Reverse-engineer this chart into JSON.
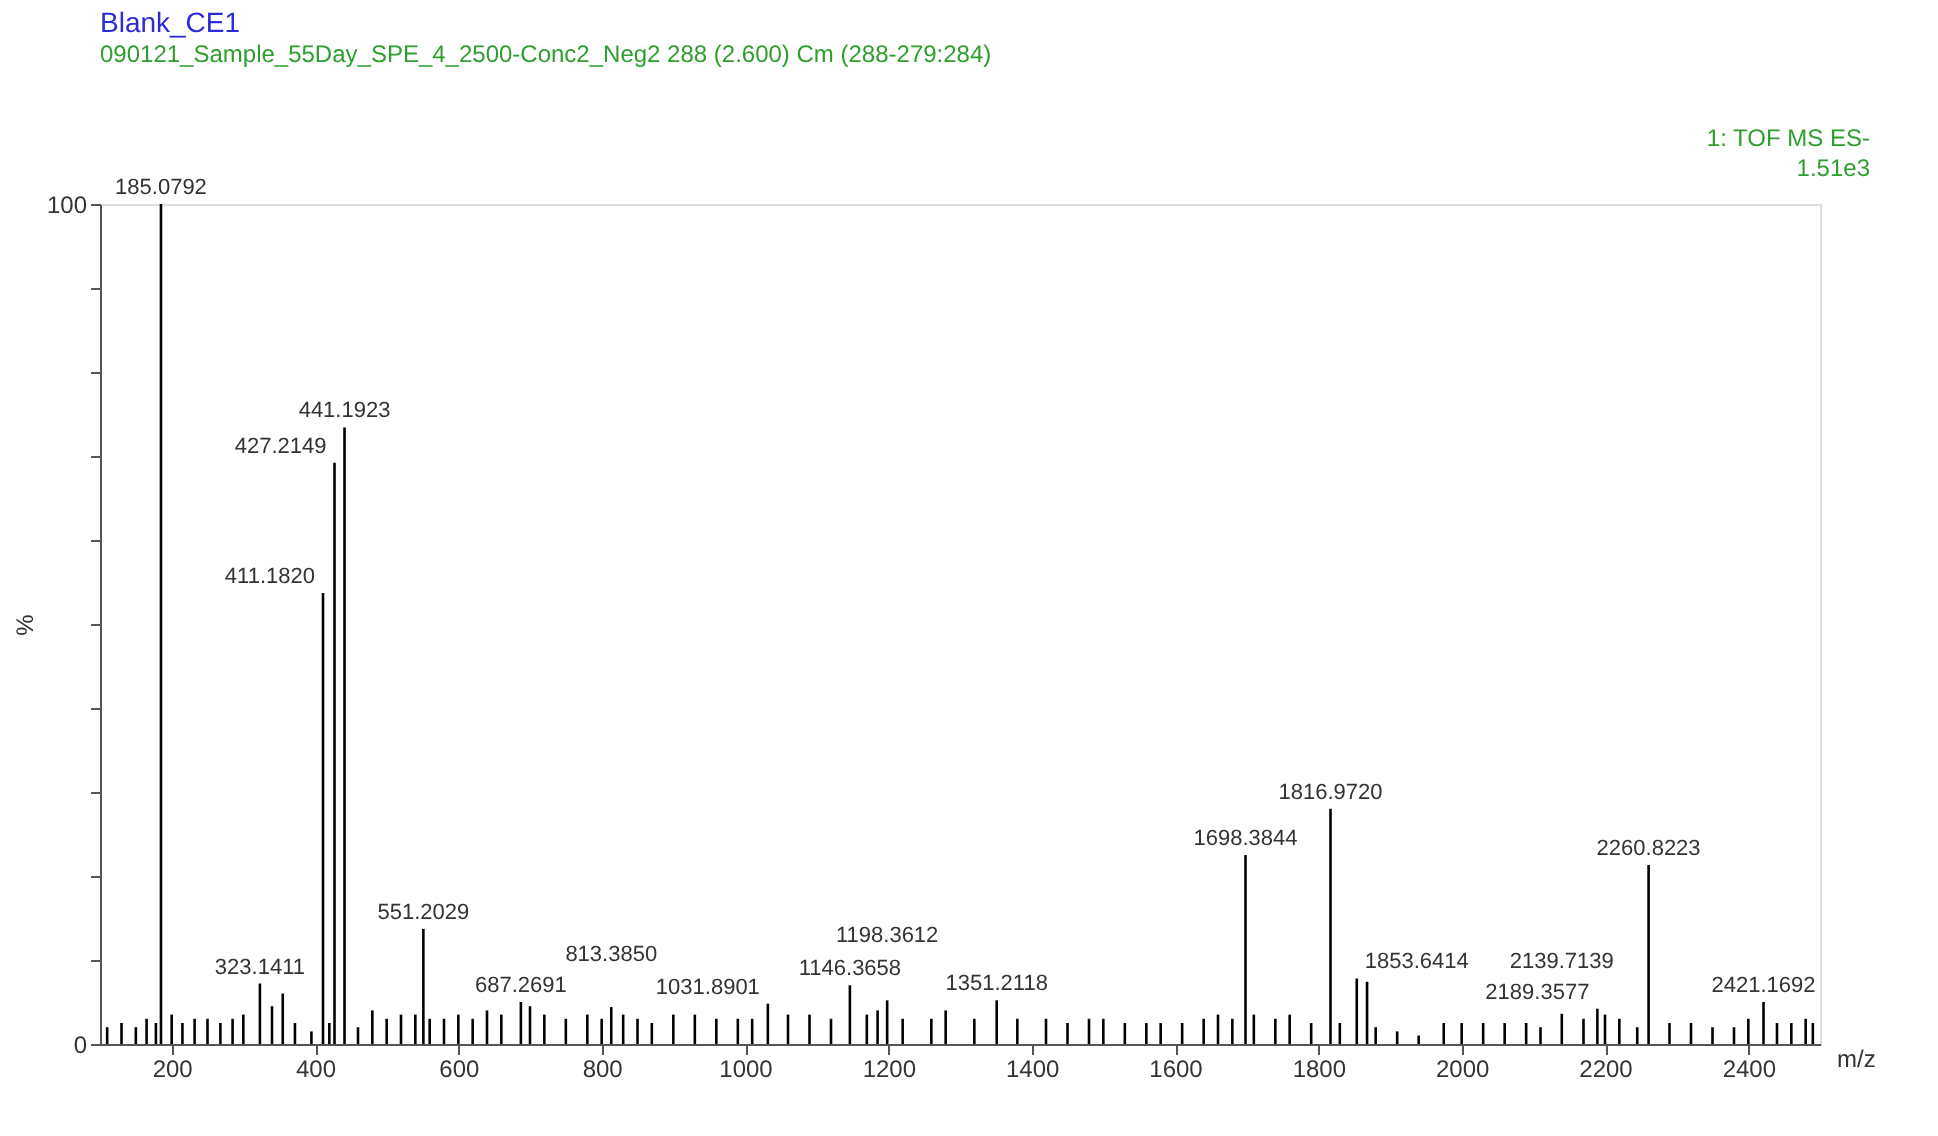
{
  "chart_data": {
    "type": "bar",
    "title": "Blank_CE1",
    "subtitle": "090121_Sample_55Day_SPE_4_2500-Conc2_Neg2 288 (2.600) Cm (288-279:284)",
    "xlabel": "m/z",
    "ylabel": "%",
    "annotations": [
      "1: TOF MS ES-",
      "1.51e3",
      {
        "text": "185.0792",
        "x": 185.0792,
        "y": 100
      },
      {
        "text": "323.1411",
        "x": 323.1411,
        "y": 7.2
      },
      {
        "text": "411.1820",
        "x": 411.182,
        "y": 53.7
      },
      {
        "text": "427.2149",
        "x": 427.2149,
        "y": 69.2
      },
      {
        "text": "441.1923",
        "x": 441.1923,
        "y": 73.4
      },
      {
        "text": "551.2029",
        "x": 551.2029,
        "y": 13.7
      },
      {
        "text": "687.2691",
        "x": 687.2691,
        "y": 5.0
      },
      {
        "text": "813.3850",
        "x": 813.385,
        "y": 4.4
      },
      {
        "text": "1031.8901",
        "x": 1031.8901,
        "y": 4.8
      },
      {
        "text": "1146.3658",
        "x": 1146.3658,
        "y": 7.0
      },
      {
        "text": "1198.3612",
        "x": 1198.3612,
        "y": 5.2
      },
      {
        "text": "1351.2118",
        "x": 1351.2118,
        "y": 5.2
      },
      {
        "text": "1698.3844",
        "x": 1698.3844,
        "y": 22.5
      },
      {
        "text": "1816.9720",
        "x": 1816.972,
        "y": 28.0
      },
      {
        "text": "1853.6414",
        "x": 1853.6414,
        "y": 7.8
      },
      {
        "text": "2139.7139",
        "x": 2139.7139,
        "y": 3.6
      },
      {
        "text": "2189.3577",
        "x": 2189.3577,
        "y": 4.2
      },
      {
        "text": "2260.8223",
        "x": 2260.8223,
        "y": 21.3
      },
      {
        "text": "2421.1692",
        "x": 2421.1692,
        "y": 5.0
      }
    ],
    "xlim": [
      100,
      2500
    ],
    "xticks": [
      200,
      400,
      600,
      800,
      1000,
      1200,
      1400,
      1600,
      1800,
      2000,
      2200,
      2400
    ],
    "ylim": [
      0,
      100
    ],
    "yticks": [
      0,
      {
        "value": 10,
        "label": null
      },
      {
        "value": 20,
        "label": null
      },
      {
        "value": 30,
        "label": null
      },
      {
        "value": 40,
        "label": null
      },
      {
        "value": 50,
        "label": null
      },
      {
        "value": 60,
        "label": null
      },
      {
        "value": 70,
        "label": null
      },
      {
        "value": 80,
        "label": null
      },
      {
        "value": 90,
        "label": null
      },
      100
    ],
    "grid": false,
    "series": [
      {
        "color": "#000000",
        "x": [
          110,
          130,
          150,
          165,
          178,
          185.0792,
          200,
          215,
          232,
          250,
          268,
          285,
          300,
          323.1411,
          340,
          355,
          372,
          395,
          411.182,
          420,
          427.2149,
          441.1923,
          460,
          480,
          500,
          520,
          540,
          551.2029,
          560,
          580,
          600,
          620,
          640,
          660,
          687.2691,
          700,
          720,
          750,
          780,
          800,
          813.385,
          830,
          850,
          870,
          900,
          930,
          960,
          990,
          1010,
          1031.8901,
          1060,
          1090,
          1120,
          1146.3658,
          1170,
          1185,
          1198.3612,
          1220,
          1260,
          1280,
          1320,
          1351.2118,
          1380,
          1420,
          1450,
          1480,
          1500,
          1530,
          1560,
          1580,
          1610,
          1640,
          1660,
          1680,
          1698.3844,
          1710,
          1740,
          1760,
          1790,
          1816.972,
          1830,
          1853.6414,
          1868,
          1880,
          1910,
          1940,
          1975,
          2000,
          2030,
          2060,
          2090,
          2110,
          2139.7139,
          2170,
          2189.3577,
          2200,
          2220,
          2245,
          2260.8223,
          2290,
          2320,
          2350,
          2380,
          2400,
          2421.1692,
          2440,
          2460,
          2480,
          2490
        ],
        "values": [
          2.0,
          2.5,
          2.0,
          3.0,
          2.5,
          100,
          3.5,
          2.5,
          3.0,
          3.0,
          2.5,
          3.0,
          3.5,
          7.2,
          4.5,
          6.0,
          2.5,
          1.5,
          53.7,
          2.5,
          69.2,
          73.4,
          2.0,
          4.0,
          3.0,
          3.5,
          3.5,
          13.7,
          3.0,
          3.0,
          3.5,
          3.0,
          4.0,
          3.5,
          5.0,
          4.5,
          3.5,
          3.0,
          3.5,
          3.0,
          4.4,
          3.5,
          3.0,
          2.5,
          3.5,
          3.5,
          3.0,
          3.0,
          3.0,
          4.8,
          3.5,
          3.5,
          3.0,
          7.0,
          3.5,
          4.0,
          5.2,
          3.0,
          3.0,
          4.0,
          3.0,
          5.2,
          3.0,
          3.0,
          2.5,
          3.0,
          3.0,
          2.5,
          2.5,
          2.5,
          2.5,
          3.0,
          3.5,
          3.0,
          22.5,
          3.5,
          3.0,
          3.5,
          2.5,
          28.0,
          2.5,
          7.8,
          7.4,
          2.0,
          1.5,
          1.0,
          2.5,
          2.5,
          2.5,
          2.5,
          2.5,
          2.0,
          3.6,
          3.0,
          4.2,
          3.5,
          3.0,
          2.0,
          21.3,
          2.5,
          2.5,
          2.0,
          2.0,
          3.0,
          5.0,
          2.5,
          2.5,
          3.0,
          2.5
        ]
      }
    ]
  }
}
